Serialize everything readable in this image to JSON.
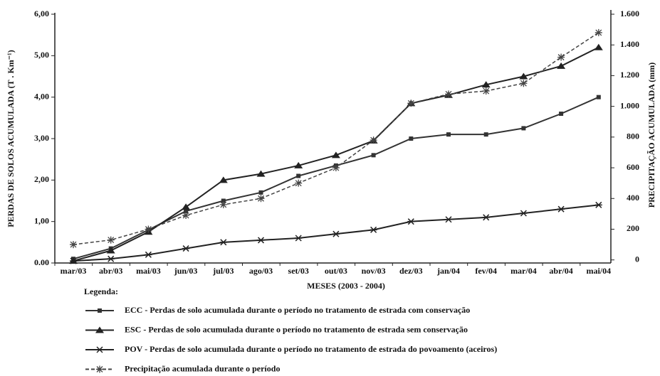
{
  "chart_data": {
    "type": "line",
    "x_label": "MESES (2003 - 2004)",
    "y_label": "PERDAS DE SOLOS ACUMULADA (T . Km⁻¹)",
    "y2_label": "PRECIPITAÇÃO ACUMULADA (mm)",
    "legend_title": "Legenda:",
    "categories": [
      "mar/03",
      "abr/03",
      "mai/03",
      "jun/03",
      "jul/03",
      "ago/03",
      "set/03",
      "out/03",
      "nov/03",
      "dez/03",
      "jan/04",
      "fev/04",
      "mar/04",
      "abr/04",
      "mai/04"
    ],
    "ylim": [
      0,
      6
    ],
    "yticks": [
      {
        "value": 0,
        "label": "0.00"
      },
      {
        "value": 1,
        "label": "1,00"
      },
      {
        "value": 2,
        "label": "2,00"
      },
      {
        "value": 3,
        "label": "3,00"
      },
      {
        "value": 4,
        "label": "4,00"
      },
      {
        "value": 5,
        "label": "5,00"
      },
      {
        "value": 6,
        "label": "6,00"
      }
    ],
    "y2lim": [
      -20,
      1600
    ],
    "y2ticks": [
      0,
      200,
      400,
      600,
      800,
      {
        "value": 1000,
        "label": "1.000"
      },
      {
        "value": 1200,
        "label": "1.200"
      },
      {
        "value": 1400,
        "label": "1.400"
      },
      {
        "value": 1600,
        "label": "1.600"
      }
    ],
    "series": [
      {
        "name": "ECC - Perdas de solo acumulada durante o período no tratamento de estrada com conservação",
        "color": "#333333",
        "marker": "square",
        "dashed": false,
        "values": [
          0.1,
          0.35,
          0.8,
          1.25,
          1.5,
          1.7,
          2.1,
          2.35,
          2.6,
          3.0,
          3.1,
          3.1,
          3.25,
          3.6,
          4.0
        ]
      },
      {
        "name": "ESC - Perdas de solo acumulada durante o período no tratamento de estrada sem conservação",
        "color": "#222222",
        "marker": "triangle",
        "dashed": false,
        "values": [
          0.05,
          0.3,
          0.75,
          1.35,
          2.0,
          2.15,
          2.35,
          2.6,
          2.95,
          3.85,
          4.05,
          4.3,
          4.5,
          4.75,
          5.2
        ]
      },
      {
        "name": "POV - Perdas de solo acumulada durante o período no tratamento de estrada do povoamento (aceiros)",
        "color": "#222222",
        "marker": "x",
        "dashed": false,
        "values": [
          0.05,
          0.1,
          0.2,
          0.35,
          0.5,
          0.55,
          0.6,
          0.7,
          0.8,
          1.0,
          1.05,
          1.1,
          1.2,
          1.3,
          1.4
        ]
      },
      {
        "name": "Precipitação acumulada durante o período",
        "color": "#444444",
        "marker": "star",
        "dashed": true,
        "axis": "y2",
        "values": [
          100,
          130,
          200,
          290,
          360,
          400,
          500,
          600,
          780,
          1020,
          1080,
          1100,
          1150,
          1320,
          1480
        ]
      }
    ]
  }
}
